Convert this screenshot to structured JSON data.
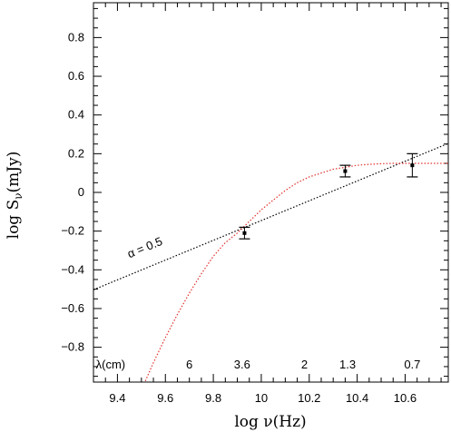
{
  "chart_data": {
    "type": "scatter",
    "xlabel": "log  ν(Hz)",
    "ylabel_main": "log  S",
    "ylabel_sub": "ν",
    "ylabel_unit": "(mJy)",
    "xlim": [
      9.3,
      10.78
    ],
    "ylim": [
      -0.98,
      0.98
    ],
    "xticks": [
      9.4,
      9.6,
      9.8,
      10,
      10.2,
      10.4,
      10.6
    ],
    "xtick_labels": [
      "9.4",
      "9.6",
      "9.8",
      "10",
      "10.2",
      "10.4",
      "10.6"
    ],
    "yticks": [
      -0.8,
      -0.6,
      -0.4,
      -0.2,
      0,
      0.2,
      0.4,
      0.6,
      0.8
    ],
    "ytick_labels": [
      "−0.8",
      "−0.6",
      "−0.4",
      "−0.2",
      "0",
      "0.2",
      "0.4",
      "0.6",
      "0.8"
    ],
    "grid": false,
    "points": [
      {
        "x": 9.93,
        "y": -0.21,
        "err_low": 0.03,
        "err_high": 0.03
      },
      {
        "x": 10.35,
        "y": 0.11,
        "err_low": 0.03,
        "err_high": 0.03
      },
      {
        "x": 10.63,
        "y": 0.14,
        "err_low": 0.06,
        "err_high": 0.06
      }
    ],
    "power_law_line": {
      "label": "α = 0.5",
      "x": [
        9.3,
        10.78
      ],
      "y": [
        -0.503,
        0.253
      ],
      "color": "#000000"
    },
    "fit_curve": {
      "color": "#e0302a",
      "x": [
        9.49,
        9.55,
        9.6,
        9.65,
        9.7,
        9.75,
        9.8,
        9.85,
        9.9,
        9.95,
        10.0,
        10.05,
        10.1,
        10.15,
        10.2,
        10.25,
        10.3,
        10.35,
        10.4,
        10.45,
        10.5,
        10.55,
        10.6,
        10.65,
        10.7,
        10.75,
        10.78
      ],
      "y": [
        -1.05,
        -0.88,
        -0.75,
        -0.63,
        -0.52,
        -0.42,
        -0.33,
        -0.26,
        -0.21,
        -0.15,
        -0.09,
        -0.04,
        0.01,
        0.05,
        0.08,
        0.1,
        0.12,
        0.13,
        0.14,
        0.145,
        0.148,
        0.15,
        0.15,
        0.15,
        0.15,
        0.15,
        0.15
      ]
    },
    "wavelength_label": "λ(cm)",
    "wavelength_marks": [
      {
        "label": "6",
        "x": 9.7
      },
      {
        "label": "3.6",
        "x": 9.92
      },
      {
        "label": "2",
        "x": 10.18
      },
      {
        "label": "1.3",
        "x": 10.36
      },
      {
        "label": "0.7",
        "x": 10.63
      }
    ]
  }
}
